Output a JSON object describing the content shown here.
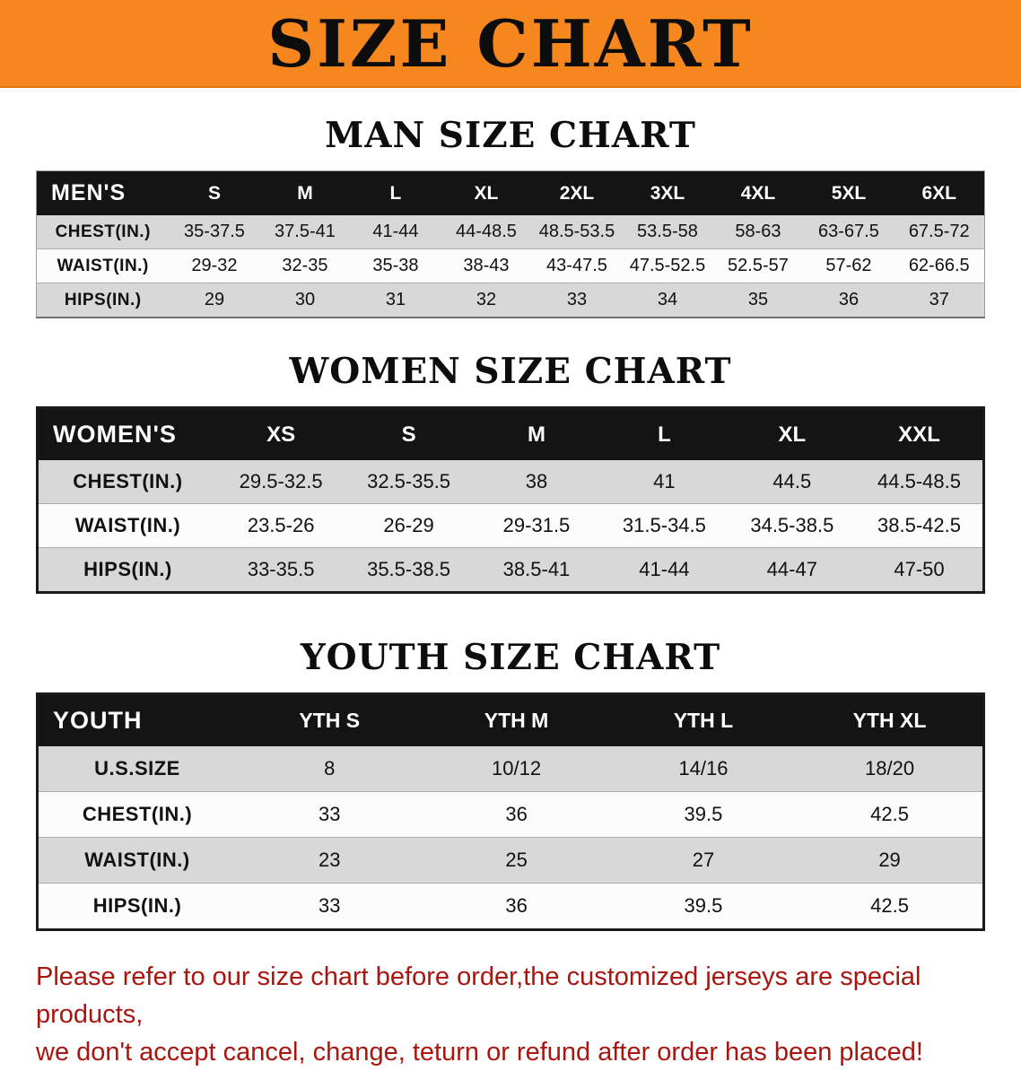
{
  "banner": {
    "title": "SIZE CHART",
    "bg_color": "#F6861E"
  },
  "sections": [
    {
      "id": "men",
      "heading": "MAN SIZE CHART",
      "table": {
        "header": [
          "MEN'S",
          "S",
          "M",
          "L",
          "XL",
          "2XL",
          "3XL",
          "4XL",
          "5XL",
          "6XL"
        ],
        "rows": [
          [
            "CHEST(IN.)",
            "35-37.5",
            "37.5-41",
            "41-44",
            "44-48.5",
            "48.5-53.5",
            "53.5-58",
            "58-63",
            "63-67.5",
            "67.5-72"
          ],
          [
            "WAIST(IN.)",
            "29-32",
            "32-35",
            "35-38",
            "38-43",
            "43-47.5",
            "47.5-52.5",
            "52.5-57",
            "57-62",
            "62-66.5"
          ],
          [
            "HIPS(IN.)",
            "29",
            "30",
            "31",
            "32",
            "33",
            "34",
            "35",
            "36",
            "37"
          ]
        ]
      }
    },
    {
      "id": "women",
      "heading": "WOMEN SIZE CHART",
      "table": {
        "header": [
          "WOMEN'S",
          "XS",
          "S",
          "M",
          "L",
          "XL",
          "XXL"
        ],
        "rows": [
          [
            "CHEST(IN.)",
            "29.5-32.5",
            "32.5-35.5",
            "38",
            "41",
            "44.5",
            "44.5-48.5"
          ],
          [
            "WAIST(IN.)",
            "23.5-26",
            "26-29",
            "29-31.5",
            "31.5-34.5",
            "34.5-38.5",
            "38.5-42.5"
          ],
          [
            "HIPS(IN.)",
            "33-35.5",
            "35.5-38.5",
            "38.5-41",
            "41-44",
            "44-47",
            "47-50"
          ]
        ]
      }
    },
    {
      "id": "youth",
      "heading": "YOUTH SIZE CHART",
      "table": {
        "header": [
          "YOUTH",
          "YTH S",
          "YTH M",
          "YTH L",
          "YTH XL"
        ],
        "rows": [
          [
            "U.S.SIZE",
            "8",
            "10/12",
            "14/16",
            "18/20"
          ],
          [
            "CHEST(IN.)",
            "33",
            "36",
            "39.5",
            "42.5"
          ],
          [
            "WAIST(IN.)",
            "23",
            "25",
            "27",
            "29"
          ],
          [
            "HIPS(IN.)",
            "33",
            "36",
            "39.5",
            "42.5"
          ]
        ]
      }
    }
  ],
  "disclaimer": {
    "lines": [
      "Please refer to our size chart before order,the customized jerseys are special products,",
      "we don't accept cancel, change, teturn or refund after order has been placed!"
    ],
    "color": "#A9150F"
  }
}
